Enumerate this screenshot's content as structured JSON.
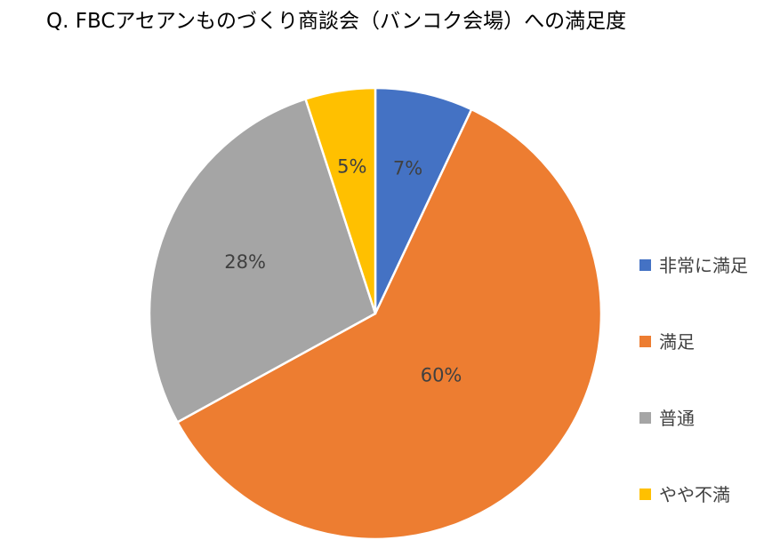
{
  "chart_data": {
    "type": "pie",
    "title": "Q. FBCアセアンものづくり商談会（バンコク会場）への満足度",
    "categories": [
      "非常に満足",
      "満足",
      "普通",
      "やや不満"
    ],
    "values": [
      7,
      60,
      28,
      5
    ],
    "labels": [
      "7%",
      "60%",
      "28%",
      "5%"
    ],
    "colors": [
      "#4472C4",
      "#ED7D31",
      "#A5A5A5",
      "#FFC000"
    ],
    "legend": "right",
    "start_angle": "12 o'clock",
    "direction": "clockwise"
  }
}
